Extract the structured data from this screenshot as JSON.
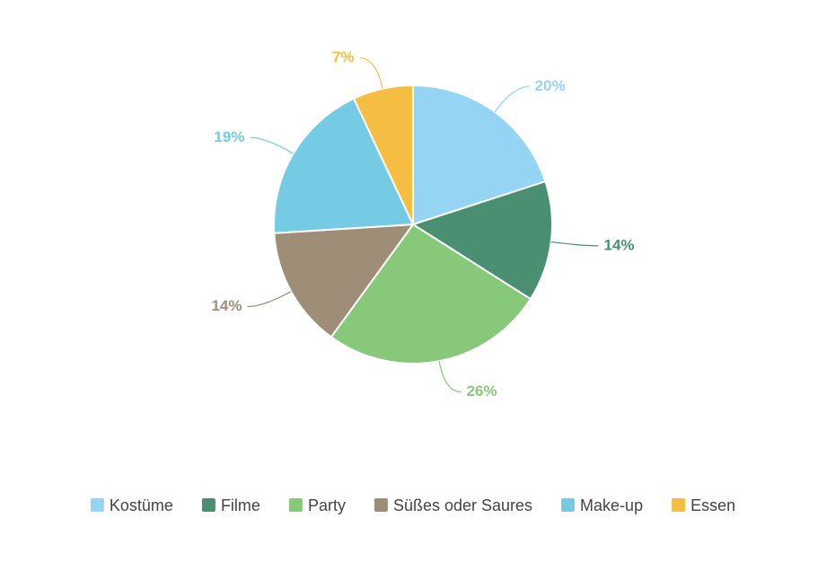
{
  "chart_data": {
    "type": "pie",
    "categories": [
      "Kostüme",
      "Filme",
      "Party",
      "Süßes oder Saures",
      "Make-up",
      "Essen"
    ],
    "values": [
      20,
      14,
      26,
      14,
      19,
      7
    ],
    "value_labels": [
      "20%",
      "14%",
      "26%",
      "14%",
      "19%",
      "7%"
    ],
    "colors": [
      "#95d5f3",
      "#4a8f72",
      "#88c87a",
      "#9e8e77",
      "#74cbe3",
      "#f5be43"
    ],
    "legend": "bottom"
  }
}
